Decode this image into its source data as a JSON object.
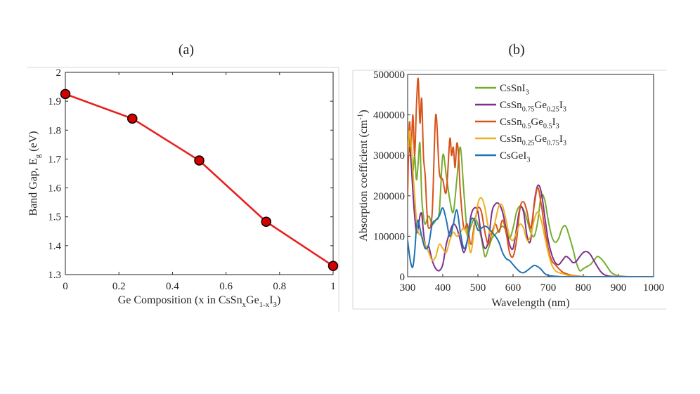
{
  "panels": {
    "a_label": "(a)",
    "b_label": "(b)"
  },
  "chart_data": [
    {
      "type": "line",
      "title": "(a)",
      "xlabel": "Ge Composition (x in CsSn",
      "xlabel_parts": [
        "Ge Composition (x in CsSn",
        "x",
        "Ge",
        "1-x",
        "I",
        "3",
        ")"
      ],
      "ylabel_parts": [
        "Band Gap, E",
        "g",
        " (eV)"
      ],
      "xlim": [
        0,
        1
      ],
      "ylim": [
        1.3,
        2.0
      ],
      "xticks": [
        0,
        0.2,
        0.4,
        0.6,
        0.8,
        1
      ],
      "xtick_labels": [
        "0",
        "0.2",
        "0.4",
        "0.6",
        "0.8",
        "1"
      ],
      "yticks": [
        1.3,
        1.4,
        1.5,
        1.6,
        1.7,
        1.8,
        1.9,
        2.0
      ],
      "ytick_labels": [
        "1.3",
        "1.4",
        "1.5",
        "1.6",
        "1.7",
        "1.8",
        "1.9",
        "2"
      ],
      "series": [
        {
          "name": "Band gap",
          "color": "#e8201f",
          "marker_color": "#d40000",
          "x": [
            0,
            0.25,
            0.5,
            0.75,
            1.0
          ],
          "y": [
            1.925,
            1.84,
            1.695,
            1.483,
            1.33
          ]
        }
      ],
      "grid": false
    },
    {
      "type": "line",
      "title": "(b)",
      "xlabel": "Wavelength (nm)",
      "ylabel_parts": [
        "Absorption coefficient (cm",
        "-1",
        ")"
      ],
      "xlim": [
        300,
        1000
      ],
      "ylim": [
        0,
        500000
      ],
      "xticks": [
        300,
        400,
        500,
        600,
        700,
        800,
        900,
        1000
      ],
      "xtick_labels": [
        "300",
        "400",
        "500",
        "600",
        "700",
        "800",
        "900",
        "1000"
      ],
      "yticks": [
        0,
        100000,
        200000,
        300000,
        400000,
        500000
      ],
      "ytick_labels": [
        "0",
        "100000",
        "200000",
        "300000",
        "400000",
        "500000"
      ],
      "legend_position": "top-center",
      "grid": false,
      "series": [
        {
          "name": "CsSnI3",
          "label_parts": [
            [
              "CsSnI",
              ""
            ],
            [
              "3",
              "sub"
            ]
          ],
          "color": "#77ac30",
          "x": [
            300,
            305,
            310,
            315,
            320,
            325,
            330,
            335,
            340,
            345,
            350,
            360,
            370,
            380,
            390,
            400,
            410,
            420,
            430,
            440,
            450,
            460,
            470,
            480,
            490,
            500,
            510,
            520,
            530,
            540,
            550,
            560,
            570,
            580,
            590,
            600,
            610,
            620,
            630,
            640,
            650,
            660,
            670,
            680,
            690,
            700,
            710,
            720,
            730,
            740,
            750,
            760,
            770,
            780,
            790,
            800,
            810,
            820,
            830,
            840,
            850,
            860,
            870,
            880,
            890,
            900,
            920,
            940,
            960,
            1000
          ],
          "y": [
            270000,
            340000,
            300000,
            260000,
            300000,
            240000,
            280000,
            330000,
            200000,
            150000,
            130000,
            150000,
            130000,
            140000,
            160000,
            300000,
            250000,
            190000,
            160000,
            240000,
            320000,
            210000,
            110000,
            125000,
            145000,
            130000,
            95000,
            50000,
            70000,
            95000,
            105000,
            115000,
            125000,
            115000,
            95000,
            120000,
            160000,
            175000,
            165000,
            140000,
            110000,
            100000,
            135000,
            200000,
            190000,
            140000,
            100000,
            85000,
            95000,
            120000,
            125000,
            100000,
            70000,
            35000,
            15000,
            20000,
            25000,
            30000,
            40000,
            50000,
            45000,
            35000,
            22000,
            10000,
            5000,
            2000,
            500,
            0,
            0,
            0
          ]
        },
        {
          "name": "CsSn0.75Ge0.25I3",
          "label_parts": [
            [
              "CsSn",
              ""
            ],
            [
              "0.75",
              "sub"
            ],
            [
              "Ge",
              ""
            ],
            [
              "0.25",
              "sub"
            ],
            [
              "I",
              ""
            ],
            [
              "3",
              "sub"
            ]
          ],
          "color": "#7e2f8e",
          "x": [
            300,
            305,
            310,
            315,
            320,
            325,
            330,
            335,
            340,
            345,
            350,
            355,
            360,
            370,
            380,
            390,
            400,
            410,
            420,
            430,
            440,
            450,
            460,
            470,
            480,
            490,
            500,
            510,
            520,
            530,
            540,
            550,
            560,
            570,
            580,
            590,
            600,
            610,
            620,
            630,
            640,
            650,
            660,
            670,
            680,
            690,
            700,
            710,
            720,
            730,
            740,
            750,
            760,
            770,
            780,
            790,
            800,
            810,
            820,
            830,
            840,
            850,
            860,
            870,
            880,
            900,
            920,
            940,
            1000
          ],
          "y": [
            290000,
            320000,
            280000,
            210000,
            150000,
            110000,
            120000,
            150000,
            155000,
            110000,
            80000,
            70000,
            75000,
            40000,
            20000,
            15000,
            30000,
            80000,
            110000,
            130000,
            120000,
            90000,
            60000,
            90000,
            150000,
            170000,
            160000,
            100000,
            70000,
            90000,
            160000,
            180000,
            180000,
            160000,
            120000,
            80000,
            70000,
            120000,
            170000,
            160000,
            100000,
            90000,
            180000,
            225000,
            210000,
            150000,
            90000,
            55000,
            35000,
            30000,
            40000,
            50000,
            45000,
            35000,
            38000,
            50000,
            60000,
            62000,
            55000,
            40000,
            25000,
            12000,
            5000,
            2000,
            800,
            0,
            0,
            0,
            0
          ]
        },
        {
          "name": "CsSn0.5Ge0.5I3",
          "label_parts": [
            [
              "CsSn",
              ""
            ],
            [
              "0.5",
              "sub"
            ],
            [
              "Ge",
              ""
            ],
            [
              "0.5",
              "sub"
            ],
            [
              "I",
              ""
            ],
            [
              "3",
              "sub"
            ]
          ],
          "color": "#d95319",
          "x": [
            300,
            305,
            310,
            315,
            320,
            325,
            330,
            335,
            340,
            345,
            350,
            355,
            360,
            370,
            380,
            390,
            400,
            410,
            420,
            425,
            430,
            435,
            440,
            445,
            450,
            460,
            470,
            480,
            490,
            500,
            510,
            520,
            530,
            540,
            550,
            560,
            570,
            580,
            590,
            600,
            610,
            620,
            630,
            640,
            650,
            660,
            670,
            680,
            690,
            700,
            710,
            720,
            730,
            740,
            750,
            760,
            770,
            780,
            790,
            800,
            820,
            840,
            860,
            880,
            900,
            1000
          ],
          "y": [
            200000,
            380000,
            320000,
            400000,
            300000,
            420000,
            490000,
            380000,
            440000,
            300000,
            250000,
            160000,
            120000,
            160000,
            400000,
            260000,
            240000,
            210000,
            340000,
            300000,
            320000,
            270000,
            330000,
            300000,
            210000,
            120000,
            130000,
            80000,
            130000,
            170000,
            160000,
            110000,
            80000,
            110000,
            130000,
            110000,
            140000,
            110000,
            60000,
            50000,
            90000,
            170000,
            185000,
            160000,
            120000,
            175000,
            220000,
            180000,
            120000,
            70000,
            40000,
            30000,
            20000,
            12000,
            8000,
            5000,
            3000,
            2000,
            1000,
            500,
            0,
            0,
            0,
            0,
            0,
            0
          ]
        },
        {
          "name": "CsSn0.25Ge0.75I3",
          "label_parts": [
            [
              "CsSn",
              ""
            ],
            [
              "0.25",
              "sub"
            ],
            [
              "Ge",
              ""
            ],
            [
              "0.75",
              "sub"
            ],
            [
              "I",
              ""
            ],
            [
              "3",
              "sub"
            ]
          ],
          "color": "#edb120",
          "x": [
            300,
            305,
            310,
            315,
            320,
            325,
            330,
            340,
            350,
            360,
            370,
            380,
            390,
            400,
            410,
            420,
            430,
            440,
            450,
            460,
            470,
            480,
            490,
            500,
            510,
            520,
            530,
            540,
            550,
            560,
            570,
            580,
            590,
            600,
            610,
            620,
            630,
            640,
            650,
            660,
            670,
            680,
            690,
            700,
            710,
            720,
            730,
            740,
            750,
            760,
            770,
            780,
            800,
            820,
            840,
            860,
            880,
            900,
            1000
          ],
          "y": [
            300000,
            360000,
            330000,
            260000,
            200000,
            140000,
            110000,
            100000,
            80000,
            60000,
            40000,
            50000,
            80000,
            70000,
            60000,
            90000,
            110000,
            100000,
            110000,
            120000,
            100000,
            60000,
            120000,
            180000,
            195000,
            170000,
            120000,
            100000,
            140000,
            175000,
            175000,
            140000,
            100000,
            90000,
            110000,
            130000,
            120000,
            90000,
            100000,
            140000,
            160000,
            140000,
            100000,
            60000,
            30000,
            15000,
            10000,
            8000,
            5000,
            3000,
            2000,
            1000,
            500,
            0,
            0,
            0,
            0,
            0,
            0
          ]
        },
        {
          "name": "CsGeI3",
          "label_parts": [
            [
              "CsGeI",
              ""
            ],
            [
              "3",
              "sub"
            ]
          ],
          "color": "#1f72b4",
          "x": [
            300,
            305,
            310,
            315,
            320,
            325,
            330,
            335,
            340,
            350,
            360,
            370,
            380,
            390,
            400,
            410,
            420,
            430,
            440,
            450,
            460,
            470,
            480,
            490,
            500,
            510,
            520,
            530,
            540,
            550,
            560,
            570,
            580,
            590,
            600,
            610,
            620,
            630,
            640,
            650,
            660,
            670,
            680,
            690,
            700,
            720,
            740,
            760,
            800,
            900,
            1000
          ],
          "y": [
            90000,
            55000,
            30000,
            25000,
            60000,
            120000,
            140000,
            120000,
            100000,
            70000,
            80000,
            130000,
            140000,
            150000,
            170000,
            140000,
            100000,
            130000,
            165000,
            110000,
            70000,
            90000,
            140000,
            140000,
            115000,
            120000,
            125000,
            120000,
            110000,
            100000,
            85000,
            60000,
            45000,
            40000,
            30000,
            20000,
            12000,
            10000,
            15000,
            22000,
            28000,
            25000,
            18000,
            8000,
            3000,
            1000,
            0,
            0,
            0,
            0,
            0
          ]
        }
      ]
    }
  ]
}
